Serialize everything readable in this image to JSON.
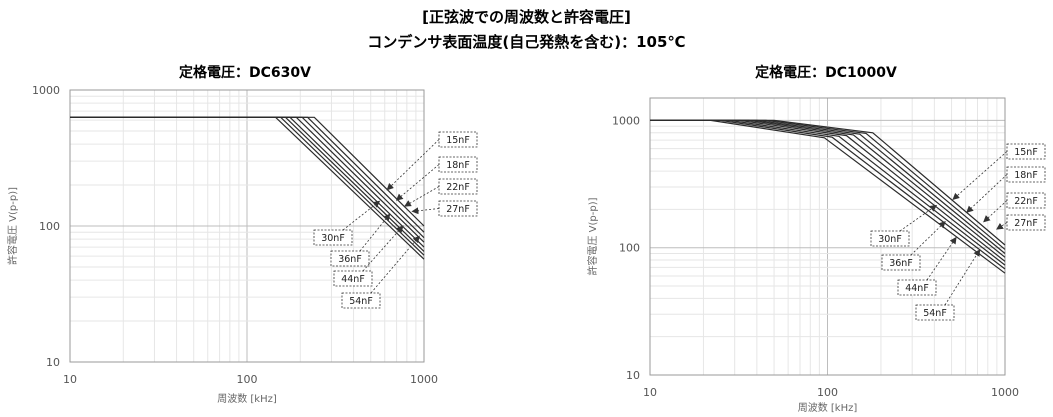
{
  "header": {
    "title": "[正弦波での周波数と許容電圧]",
    "subtitle": "コンデンサ表面温度(自己発熱を含む)：105℃"
  },
  "chart_data": [
    {
      "type": "line",
      "title": "定格電圧：DC630V",
      "xlabel": "周波数 [kHz]",
      "ylabel": "許容電圧 V(p-p)]",
      "xscale": "log",
      "yscale": "log",
      "xlim": [
        10,
        1000
      ],
      "ylim": [
        10,
        1000
      ],
      "xticks": [
        "10",
        "100",
        "1000"
      ],
      "yticks": [
        "10",
        "100",
        "1000"
      ],
      "grid": true,
      "series": [
        {
          "name": "15nF",
          "points": [
            [
              10,
              630
            ],
            [
              240,
              630
            ],
            [
              1000,
              100
            ]
          ]
        },
        {
          "name": "18nF",
          "points": [
            [
              10,
              630
            ],
            [
              220,
              630
            ],
            [
              1000,
              90
            ]
          ]
        },
        {
          "name": "22nF",
          "points": [
            [
              10,
              630
            ],
            [
              205,
              630
            ],
            [
              1000,
              82
            ]
          ]
        },
        {
          "name": "27nF",
          "points": [
            [
              10,
              630
            ],
            [
              190,
              630
            ],
            [
              1000,
              76
            ]
          ]
        },
        {
          "name": "30nF",
          "points": [
            [
              10,
              630
            ],
            [
              175,
              630
            ],
            [
              1000,
              70
            ]
          ]
        },
        {
          "name": "36nF",
          "points": [
            [
              10,
              630
            ],
            [
              165,
              630
            ],
            [
              1000,
              65
            ]
          ]
        },
        {
          "name": "44nF",
          "points": [
            [
              10,
              630
            ],
            [
              155,
              630
            ],
            [
              1000,
              61
            ]
          ]
        },
        {
          "name": "54nF",
          "points": [
            [
              10,
              630
            ],
            [
              145,
              630
            ],
            [
              1000,
              57
            ]
          ]
        }
      ],
      "callouts": [
        {
          "label": "15nF",
          "to": [
            620,
            185
          ]
        },
        {
          "label": "18nF",
          "to": [
            700,
            155
          ]
        },
        {
          "label": "22nF",
          "to": [
            780,
            140
          ]
        },
        {
          "label": "27nF",
          "to": [
            860,
            128
          ]
        },
        {
          "label": "30nF",
          "to": [
            560,
            152
          ]
        },
        {
          "label": "36nF",
          "to": [
            640,
            122
          ]
        },
        {
          "label": "44nF",
          "to": [
            760,
            100
          ]
        },
        {
          "label": "54nF",
          "to": [
            940,
            84
          ]
        }
      ]
    },
    {
      "type": "line",
      "title": "定格電圧：DC1000V",
      "xlabel": "周波数 [kHz]",
      "ylabel": "許容電圧 V(p-p)]",
      "xscale": "log",
      "yscale": "log",
      "xlim": [
        10,
        1000
      ],
      "ylim": [
        10,
        1500
      ],
      "xticks": [
        "10",
        "100",
        "1000"
      ],
      "yticks": [
        "10",
        "100",
        "1000"
      ],
      "grid": true,
      "series": [
        {
          "name": "15nF",
          "points": [
            [
              10,
              1000
            ],
            [
              50,
              1000
            ],
            [
              180,
              800
            ],
            [
              1000,
              105
            ]
          ]
        },
        {
          "name": "18nF",
          "points": [
            [
              10,
              1000
            ],
            [
              45,
              1000
            ],
            [
              165,
              790
            ],
            [
              1000,
              97
            ]
          ]
        },
        {
          "name": "22nF",
          "points": [
            [
              10,
              1000
            ],
            [
              40,
              1000
            ],
            [
              152,
              780
            ],
            [
              1000,
              90
            ]
          ]
        },
        {
          "name": "27nF",
          "points": [
            [
              10,
              1000
            ],
            [
              36,
              1000
            ],
            [
              140,
              770
            ],
            [
              1000,
              84
            ]
          ]
        },
        {
          "name": "30nF",
          "points": [
            [
              10,
              1000
            ],
            [
              32,
              1000
            ],
            [
              128,
              760
            ],
            [
              1000,
              78
            ]
          ]
        },
        {
          "name": "36nF",
          "points": [
            [
              10,
              1000
            ],
            [
              28,
              1000
            ],
            [
              116,
              750
            ],
            [
              1000,
              73
            ]
          ]
        },
        {
          "name": "44nF",
          "points": [
            [
              10,
              1000
            ],
            [
              25,
              1000
            ],
            [
              106,
              740
            ],
            [
              1000,
              68
            ]
          ]
        },
        {
          "name": "54nF",
          "points": [
            [
              10,
              1000
            ],
            [
              22,
              1000
            ],
            [
              96,
              730
            ],
            [
              1000,
              63
            ]
          ]
        }
      ],
      "callouts": [
        {
          "label": "15nF",
          "to": [
            510,
            240
          ]
        },
        {
          "label": "18nF",
          "to": [
            610,
            190
          ]
        },
        {
          "label": "22nF",
          "to": [
            760,
            160
          ]
        },
        {
          "label": "27nF",
          "to": [
            900,
            140
          ]
        },
        {
          "label": "30nF",
          "to": [
            410,
            215
          ]
        },
        {
          "label": "36nF",
          "to": [
            460,
            160
          ]
        },
        {
          "label": "44nF",
          "to": [
            530,
            120
          ]
        },
        {
          "label": "54nF",
          "to": [
            720,
            96
          ]
        }
      ]
    }
  ]
}
